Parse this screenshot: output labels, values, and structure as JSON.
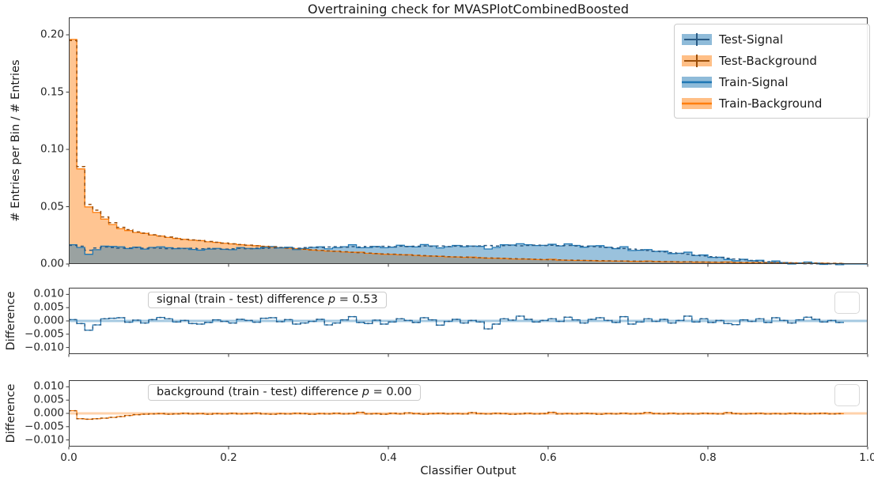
{
  "title": "Overtraining check for MVASPlotCombinedBoosted",
  "xlabel": "Classifier Output",
  "colors": {
    "signal": "#1f77b4",
    "background": "#ff7f0e",
    "signal_fill": "rgba(31,119,180,0.45)",
    "background_fill": "rgba(255,127,14,0.45)",
    "test_signal_dark": "#2a5a84",
    "test_background_dark": "#9a4e0a",
    "signal_zero_band": "rgba(31,119,180,0.40)",
    "background_zero_band": "rgba(255,127,14,0.35)",
    "spine": "#3a3a3a"
  },
  "legend": {
    "items": [
      {
        "label": "Test-Signal",
        "icon": "errorbar-signal"
      },
      {
        "label": "Test-Background",
        "icon": "errorbar-background"
      },
      {
        "label": "Train-Signal",
        "icon": "band-signal"
      },
      {
        "label": "Train-Background",
        "icon": "band-background"
      }
    ]
  },
  "main_panel": {
    "ylabel": "# Entries per Bin / # Entries",
    "ytick_labels": [
      "0.00",
      "0.05",
      "0.10",
      "0.15",
      "0.20"
    ],
    "ytick_values": [
      0,
      0.05,
      0.1,
      0.15,
      0.2
    ],
    "ylim": [
      0,
      0.2152
    ]
  },
  "signal_panel": {
    "ylabel": "Difference",
    "annotation": {
      "prefix": "signal (train - test) difference ",
      "p": "p",
      "value": " = 0.53"
    },
    "ytick_labels": [
      "0.010",
      "0.005",
      "0.000",
      "−0.005",
      "−0.010"
    ],
    "ytick_values": [
      0.01,
      0.005,
      0.0,
      -0.005,
      -0.01
    ],
    "ylim": [
      -0.0125,
      0.0125
    ]
  },
  "background_panel": {
    "ylabel": "Difference",
    "annotation": {
      "prefix": "background (train - test) difference ",
      "p": "p",
      "value": " = 0.00"
    },
    "ytick_labels": [
      "0.010",
      "0.005",
      "0.000",
      "−0.005",
      "−0.010"
    ],
    "ytick_values": [
      0.01,
      0.005,
      0.0,
      -0.005,
      -0.01
    ],
    "ylim": [
      -0.0125,
      0.0125
    ]
  },
  "xtick_labels": [
    "0.0",
    "0.2",
    "0.4",
    "0.6",
    "0.8",
    "1.0"
  ],
  "xtick_values": [
    0,
    0.2,
    0.4,
    0.6,
    0.8,
    1.0
  ],
  "chart_data": {
    "type": "bar",
    "subtype": "overtraining-check-histograms",
    "bins": 100,
    "xlim": [
      0,
      1
    ],
    "main_ylim": [
      0,
      0.2152
    ],
    "diff_ylim": [
      -0.0125,
      0.0125
    ],
    "title": "Overtraining check for MVASPlotCombinedBoosted",
    "xlabel": "Classifier Output",
    "ylabel_main": "# Entries per Bin / # Entries",
    "ylabel_diff": "Difference",
    "legend_position": "upper right",
    "series": [
      {
        "name": "Test-Signal",
        "style": "errorbar",
        "color": "#1f77b4"
      },
      {
        "name": "Test-Background",
        "style": "errorbar",
        "color": "#ff7f0e"
      },
      {
        "name": "Train-Signal",
        "style": "filled-step",
        "color": "#1f77b4"
      },
      {
        "name": "Train-Background",
        "style": "filled-step",
        "color": "#ff7f0e"
      }
    ],
    "test_signal": [
      0.0163,
      0.0155,
      0.012,
      0.014,
      0.0148,
      0.0143,
      0.0138,
      0.014,
      0.0144,
      0.0138,
      0.014,
      0.0137,
      0.0134,
      0.0138,
      0.0135,
      0.0137,
      0.0133,
      0.0136,
      0.0132,
      0.013,
      0.0133,
      0.0137,
      0.0134,
      0.0139,
      0.0136,
      0.014,
      0.0144,
      0.0141,
      0.0138,
      0.0143,
      0.0147,
      0.0144,
      0.0148,
      0.0151,
      0.0147,
      0.0152,
      0.0148,
      0.0153,
      0.015,
      0.0154,
      0.0151,
      0.0156,
      0.0152,
      0.0155,
      0.0158,
      0.0154,
      0.0157,
      0.0153,
      0.0156,
      0.0159,
      0.0155,
      0.0158,
      0.0161,
      0.0157,
      0.016,
      0.0163,
      0.0159,
      0.0162,
      0.0165,
      0.0161,
      0.0164,
      0.016,
      0.0162,
      0.0158,
      0.0155,
      0.0152,
      0.0148,
      0.0144,
      0.014,
      0.0135,
      0.013,
      0.0124,
      0.0118,
      0.0112,
      0.0106,
      0.0099,
      0.0092,
      0.0085,
      0.0078,
      0.0071,
      0.0064,
      0.0057,
      0.005,
      0.0043,
      0.0037,
      0.0031,
      0.0025,
      0.002,
      0.0015,
      0.0011,
      0.0008,
      0.0005,
      0.0003,
      0.0002,
      0.0001,
      0.0001,
      0.0,
      0,
      0,
      0
    ],
    "test_background": [
      0.195,
      0.085,
      0.052,
      0.047,
      0.041,
      0.036,
      0.032,
      0.03,
      0.028,
      0.027,
      0.0255,
      0.0245,
      0.0235,
      0.0225,
      0.0215,
      0.021,
      0.0205,
      0.0197,
      0.019,
      0.0183,
      0.0176,
      0.017,
      0.0165,
      0.0159,
      0.0154,
      0.0149,
      0.0144,
      0.0139,
      0.0134,
      0.0129,
      0.0124,
      0.0119,
      0.0115,
      0.0111,
      0.0107,
      0.0103,
      0.0099,
      0.0095,
      0.0091,
      0.0088,
      0.0085,
      0.0082,
      0.0079,
      0.0076,
      0.0073,
      0.007,
      0.0067,
      0.0064,
      0.0062,
      0.006,
      0.0057,
      0.0055,
      0.0053,
      0.0051,
      0.0049,
      0.0047,
      0.0045,
      0.0043,
      0.0041,
      0.0039,
      0.0037,
      0.0036,
      0.0034,
      0.0033,
      0.0031,
      0.003,
      0.0029,
      0.0028,
      0.0027,
      0.0026,
      0.0025,
      0.0024,
      0.0023,
      0.0022,
      0.0021,
      0.002,
      0.0019,
      0.0019,
      0.0018,
      0.0017,
      0.0016,
      0.0016,
      0.0015,
      0.0014,
      0.0014,
      0.0013,
      0.0012,
      0.0012,
      0.0011,
      0.001,
      0.001,
      0.0009,
      0.0008,
      0.0008,
      0.0007,
      0.0006,
      0.0005,
      0,
      0,
      0
    ],
    "signal_diff_train_minus_test": [
      0.0005,
      -0.001,
      -0.0035,
      -0.0015,
      0.0008,
      0.001,
      0.0012,
      -0.0005,
      0.0003,
      -0.0008,
      0.0005,
      0.0013,
      0.0008,
      -0.0004,
      0.0002,
      -0.001,
      -0.0012,
      -0.0006,
      0.0004,
      -0.0002,
      -0.0008,
      0.0006,
      0.0002,
      -0.0005,
      0.001,
      0.0012,
      -0.0003,
      0.0005,
      -0.0012,
      -0.0008,
      -0.0002,
      0.0006,
      -0.0015,
      -0.0008,
      0.0004,
      0.0016,
      -0.0006,
      -0.001,
      0.0003,
      -0.0012,
      -0.0004,
      0.0008,
      0.0002,
      -0.0006,
      0.0012,
      0.0004,
      -0.0016,
      -0.0002,
      0.0006,
      -0.0008,
      0.0002,
      -0.0004,
      -0.003,
      -0.0012,
      0.0008,
      0.0003,
      0.0018,
      0.0006,
      -0.0004,
      0.0002,
      0.0008,
      -0.0002,
      0.0014,
      0.0004,
      -0.0008,
      0.0006,
      0.0012,
      0.0002,
      -0.0006,
      0.0016,
      -0.0012,
      -0.0004,
      0.0008,
      -0.0002,
      0.0006,
      -0.0008,
      0.0002,
      0.0018,
      -0.0004,
      0.0008,
      -0.0006,
      0.0002,
      -0.001,
      -0.0014,
      0.0004,
      -0.0002,
      0.0008,
      -0.0006,
      0.0012,
      0.0002,
      -0.0008,
      0.0004,
      0.0014,
      0.0006,
      -0.0004,
      0.0002,
      -0.0006,
      0,
      0,
      0
    ],
    "background_diff_train_minus_test": [
      0.001,
      -0.002,
      -0.0022,
      -0.002,
      -0.0018,
      -0.0015,
      -0.0012,
      -0.0008,
      -0.0005,
      -0.0003,
      -0.0002,
      -0.0001,
      -0.0003,
      -0.0002,
      0.0,
      -0.0002,
      -0.0001,
      -0.0003,
      -0.0001,
      -0.0002,
      0.0,
      -0.0002,
      -0.0001,
      0.0001,
      -0.0002,
      -0.0003,
      -0.0001,
      -0.0002,
      0.0,
      -0.0001,
      -0.0003,
      -0.0001,
      -0.0002,
      0.0,
      -0.0002,
      -0.0001,
      0.0004,
      -0.0002,
      -0.0001,
      -0.0003,
      0.0,
      -0.0002,
      0.0002,
      -0.0001,
      -0.0003,
      -0.0001,
      0.0,
      -0.0002,
      -0.0001,
      -0.0002,
      0.0003,
      -0.0001,
      -0.0002,
      0.0,
      -0.0001,
      -0.0003,
      -0.0002,
      0.0,
      -0.0002,
      -0.0001,
      0.0004,
      -0.0002,
      -0.0001,
      -0.0002,
      0.0,
      -0.0001,
      -0.0003,
      -0.0001,
      -0.0002,
      0.0,
      -0.0002,
      -0.0001,
      0.0003,
      -0.0001,
      -0.0002,
      0.0,
      -0.0002,
      -0.0001,
      -0.0002,
      0.0,
      -0.0001,
      -0.0002,
      0.0003,
      -0.0001,
      -0.0002,
      -0.0001,
      0.0,
      -0.0002,
      -0.0001,
      -0.0002,
      0.0,
      -0.0001,
      -0.0002,
      -0.0001,
      0.0,
      -0.0002,
      -0.0001,
      0,
      0,
      0
    ],
    "annotations": [
      "signal (train - test) difference p = 0.53",
      "background (train - test) difference p = 0.00"
    ]
  }
}
